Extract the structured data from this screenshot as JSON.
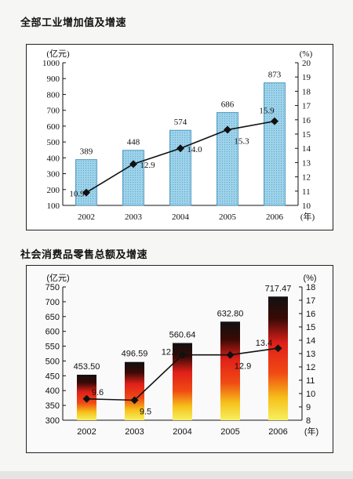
{
  "chart_data": [
    {
      "type": "bar",
      "title": "全部工业增加值及增速",
      "categories": [
        "2002",
        "2003",
        "2004",
        "2005",
        "2006"
      ],
      "series": [
        {
          "type": "bar",
          "axis": "left",
          "values": [
            389,
            448,
            574,
            686,
            873
          ],
          "labels": [
            "389",
            "448",
            "574",
            "686",
            "873"
          ],
          "color": "#9fd3ea"
        },
        {
          "type": "line",
          "axis": "right",
          "values": [
            10.9,
            12.9,
            14.0,
            15.3,
            15.9
          ],
          "labels": [
            "10.9",
            "12.9",
            "14.0",
            "15.3",
            "15.9"
          ],
          "color": "#111111"
        }
      ],
      "ylabel_left": "(亿元)",
      "ylabel_right": "(%)",
      "xlabel": "(年)",
      "ylim_left": [
        100,
        1000
      ],
      "ylim_right": [
        10,
        20
      ],
      "yticks_left": [
        "100",
        "200",
        "300",
        "400",
        "500",
        "600",
        "700",
        "800",
        "900",
        "1000"
      ],
      "yticks_right": [
        "10",
        "11",
        "12",
        "13",
        "14",
        "15",
        "16",
        "17",
        "18",
        "19",
        "20"
      ],
      "grid": false
    },
    {
      "type": "bar",
      "title": "社会消费品零售总额及增速",
      "categories": [
        "2002",
        "2003",
        "2004",
        "2005",
        "2006"
      ],
      "series": [
        {
          "type": "bar",
          "axis": "left",
          "values": [
            453.5,
            496.59,
            560.64,
            632.8,
            717.47
          ],
          "labels": [
            "453.50",
            "496.59",
            "560.64",
            "632.80",
            "717.47"
          ],
          "color": "#e8301a"
        },
        {
          "type": "line",
          "axis": "right",
          "values": [
            9.6,
            9.5,
            12.9,
            12.9,
            13.4
          ],
          "labels": [
            "9.6",
            "9.5",
            "12.9",
            "12.9",
            "13.4"
          ],
          "color": "#111111"
        }
      ],
      "ylabel_left": "(亿元)",
      "ylabel_right": "(%)",
      "xlabel": "(年)",
      "ylim_left": [
        300,
        750
      ],
      "ylim_right": [
        8,
        18
      ],
      "yticks_left": [
        "300",
        "350",
        "400",
        "450",
        "500",
        "550",
        "600",
        "650",
        "700",
        "750"
      ],
      "yticks_right": [
        "8",
        "9",
        "10",
        "11",
        "12",
        "13",
        "14",
        "15",
        "16",
        "17",
        "18"
      ],
      "grid": false
    }
  ]
}
